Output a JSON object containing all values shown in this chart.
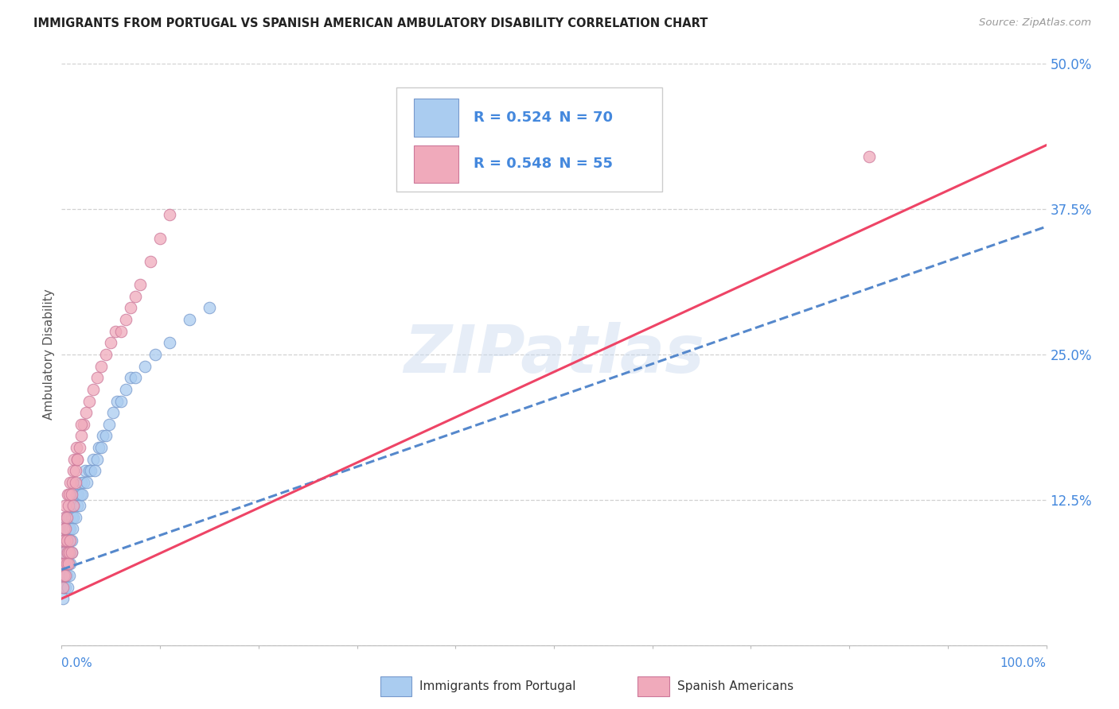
{
  "title": "IMMIGRANTS FROM PORTUGAL VS SPANISH AMERICAN AMBULATORY DISABILITY CORRELATION CHART",
  "source": "Source: ZipAtlas.com",
  "ylabel": "Ambulatory Disability",
  "watermark": "ZIPatlas",
  "xmin": 0.0,
  "xmax": 1.0,
  "ymin": 0.0,
  "ymax": 0.5,
  "yticks": [
    0.0,
    0.125,
    0.25,
    0.375,
    0.5
  ],
  "ytick_labels": [
    "",
    "12.5%",
    "25.0%",
    "37.5%",
    "50.0%"
  ],
  "blue_R": 0.524,
  "blue_N": 70,
  "pink_R": 0.548,
  "pink_N": 55,
  "blue_color": "#aaccf0",
  "pink_color": "#f0aabb",
  "blue_edge": "#7799cc",
  "pink_edge": "#cc7799",
  "trend_blue_color": "#5588cc",
  "trend_pink_color": "#ee4466",
  "legend_R_color": "#4488dd",
  "legend_N_color": "#333333",
  "title_color": "#222222",
  "axis_color": "#bbbbbb",
  "grid_color": "#cccccc",
  "blue_scatter_x": [
    0.001,
    0.001,
    0.002,
    0.002,
    0.002,
    0.003,
    0.003,
    0.003,
    0.004,
    0.004,
    0.004,
    0.005,
    0.005,
    0.006,
    0.006,
    0.006,
    0.007,
    0.007,
    0.008,
    0.008,
    0.009,
    0.009,
    0.01,
    0.01,
    0.011,
    0.011,
    0.012,
    0.013,
    0.014,
    0.015,
    0.016,
    0.017,
    0.018,
    0.019,
    0.02,
    0.021,
    0.022,
    0.024,
    0.026,
    0.028,
    0.03,
    0.032,
    0.034,
    0.036,
    0.038,
    0.04,
    0.042,
    0.045,
    0.048,
    0.052,
    0.056,
    0.06,
    0.065,
    0.07,
    0.075,
    0.085,
    0.095,
    0.11,
    0.13,
    0.15,
    0.001,
    0.002,
    0.003,
    0.004,
    0.005,
    0.006,
    0.007,
    0.008,
    0.009,
    0.01
  ],
  "blue_scatter_y": [
    0.06,
    0.08,
    0.05,
    0.07,
    0.09,
    0.06,
    0.08,
    0.1,
    0.07,
    0.09,
    0.11,
    0.08,
    0.1,
    0.07,
    0.09,
    0.11,
    0.08,
    0.1,
    0.09,
    0.11,
    0.08,
    0.1,
    0.09,
    0.11,
    0.1,
    0.12,
    0.11,
    0.12,
    0.11,
    0.13,
    0.12,
    0.13,
    0.12,
    0.13,
    0.14,
    0.13,
    0.14,
    0.15,
    0.14,
    0.15,
    0.15,
    0.16,
    0.15,
    0.16,
    0.17,
    0.17,
    0.18,
    0.18,
    0.19,
    0.2,
    0.21,
    0.21,
    0.22,
    0.23,
    0.23,
    0.24,
    0.25,
    0.26,
    0.28,
    0.29,
    0.04,
    0.05,
    0.06,
    0.05,
    0.06,
    0.05,
    0.07,
    0.06,
    0.07,
    0.08
  ],
  "pink_scatter_x": [
    0.001,
    0.001,
    0.002,
    0.002,
    0.003,
    0.003,
    0.004,
    0.004,
    0.005,
    0.005,
    0.006,
    0.007,
    0.008,
    0.009,
    0.01,
    0.011,
    0.012,
    0.013,
    0.014,
    0.015,
    0.016,
    0.018,
    0.02,
    0.022,
    0.025,
    0.028,
    0.032,
    0.036,
    0.04,
    0.045,
    0.05,
    0.055,
    0.06,
    0.065,
    0.07,
    0.075,
    0.08,
    0.09,
    0.1,
    0.11,
    0.001,
    0.002,
    0.003,
    0.004,
    0.005,
    0.006,
    0.007,
    0.008,
    0.009,
    0.01,
    0.012,
    0.014,
    0.016,
    0.02,
    0.82
  ],
  "pink_scatter_y": [
    0.07,
    0.09,
    0.08,
    0.1,
    0.09,
    0.11,
    0.1,
    0.12,
    0.09,
    0.11,
    0.13,
    0.12,
    0.13,
    0.14,
    0.13,
    0.14,
    0.15,
    0.16,
    0.15,
    0.17,
    0.16,
    0.17,
    0.18,
    0.19,
    0.2,
    0.21,
    0.22,
    0.23,
    0.24,
    0.25,
    0.26,
    0.27,
    0.27,
    0.28,
    0.29,
    0.3,
    0.31,
    0.33,
    0.35,
    0.37,
    0.05,
    0.06,
    0.07,
    0.06,
    0.07,
    0.08,
    0.07,
    0.08,
    0.09,
    0.08,
    0.12,
    0.14,
    0.16,
    0.19,
    0.42
  ],
  "blue_trend_x": [
    0.0,
    1.0
  ],
  "blue_trend_y": [
    0.065,
    0.36
  ],
  "pink_trend_x": [
    0.0,
    1.0
  ],
  "pink_trend_y": [
    0.04,
    0.43
  ],
  "background_color": "#ffffff"
}
